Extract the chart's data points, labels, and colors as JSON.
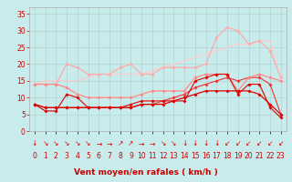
{
  "xlabel": "Vent moyen/en rafales ( km/h )",
  "bg_color": "#c8ecec",
  "grid_color": "#b0cccc",
  "x": [
    0,
    1,
    2,
    3,
    4,
    5,
    6,
    7,
    8,
    9,
    10,
    11,
    12,
    13,
    14,
    15,
    16,
    17,
    18,
    19,
    20,
    21,
    22,
    23
  ],
  "lines": [
    {
      "y": [
        8,
        7,
        7,
        7,
        7,
        7,
        7,
        7,
        7,
        7,
        8,
        8,
        8,
        9,
        10,
        11,
        12,
        12,
        12,
        12,
        12,
        11,
        8,
        5
      ],
      "color": "#dd0000",
      "lw": 0.9,
      "marker": "D",
      "ms": 1.8,
      "zorder": 5
    },
    {
      "y": [
        8,
        6,
        6,
        11,
        10,
        7,
        7,
        7,
        7,
        8,
        9,
        9,
        9,
        9,
        9,
        15,
        16,
        17,
        17,
        11,
        14,
        14,
        7,
        4
      ],
      "color": "#dd0000",
      "lw": 0.8,
      "marker": "D",
      "ms": 1.8,
      "zorder": 4
    },
    {
      "y": [
        8,
        7,
        7,
        7,
        7,
        7,
        7,
        7,
        7,
        7,
        8,
        8,
        9,
        10,
        11,
        13,
        14,
        15,
        16,
        15,
        16,
        16,
        14,
        5
      ],
      "color": "#ee3333",
      "lw": 0.8,
      "marker": "D",
      "ms": 1.8,
      "zorder": 3
    },
    {
      "y": [
        14,
        14,
        14,
        13,
        11,
        10,
        10,
        10,
        10,
        10,
        11,
        12,
        12,
        12,
        12,
        16,
        17,
        17,
        17,
        12,
        16,
        17,
        16,
        15
      ],
      "color": "#ff8888",
      "lw": 0.9,
      "marker": "D",
      "ms": 1.8,
      "zorder": 3
    },
    {
      "y": [
        14,
        14,
        14,
        20,
        19,
        17,
        17,
        17,
        19,
        20,
        17,
        17,
        19,
        19,
        19,
        19,
        20,
        28,
        31,
        30,
        26,
        27,
        24,
        16
      ],
      "color": "#ffaaaa",
      "lw": 0.9,
      "marker": "D",
      "ms": 1.8,
      "zorder": 2
    },
    {
      "y": [
        14,
        15,
        15,
        15,
        15,
        16,
        17,
        17,
        17,
        17,
        17,
        18,
        19,
        20,
        21,
        22,
        23,
        24,
        25,
        26,
        26,
        27,
        27,
        15
      ],
      "color": "#ffcccc",
      "lw": 0.9,
      "marker": null,
      "ms": 0,
      "zorder": 1
    }
  ],
  "arrows": [
    "↓",
    "↘",
    "↘",
    "↘",
    "↘",
    "↘",
    "→",
    "→",
    "↗",
    "↗",
    "→",
    "→",
    "↘",
    "↘",
    "↓",
    "↓",
    "↓",
    "↓",
    "↙",
    "↙",
    "↙",
    "↙",
    "↙",
    "↙"
  ],
  "ylim": [
    0,
    37
  ],
  "yticks": [
    0,
    5,
    10,
    15,
    20,
    25,
    30,
    35
  ],
  "xlim": [
    -0.5,
    23.5
  ],
  "tick_fontsize": 5.5,
  "xlabel_fontsize": 6.5,
  "arrow_fontsize": 5.5,
  "arrow_color": "#dd0000"
}
